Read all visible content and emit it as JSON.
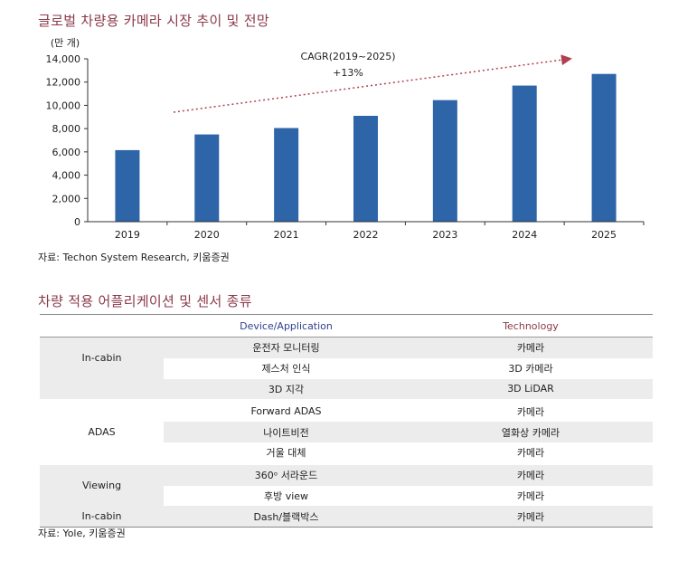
{
  "chart_section": {
    "title": "글로벌 차량용 카메라 시장 추이 및 전망",
    "source": "자료: Techon System Research, 키움증권"
  },
  "chart_data": {
    "type": "bar",
    "unit_label": "(만 개)",
    "categories": [
      "2019",
      "2020",
      "2021",
      "2022",
      "2023",
      "2024",
      "2025"
    ],
    "values": [
      6150,
      7500,
      8050,
      9100,
      10450,
      11700,
      12700
    ],
    "ylim": [
      0,
      14000
    ],
    "yticks": [
      "0",
      "2,000",
      "4,000",
      "6,000",
      "8,000",
      "10,000",
      "12,000",
      "14,000"
    ],
    "annotation": [
      "CAGR(2019~2025)",
      "+13%"
    ],
    "bar_color": "#2e64a8",
    "grid": false
  },
  "table_section": {
    "title": "차량 적용 어플리케이션 및 센서 종류",
    "source": "자료: Yole, 키움증권",
    "headers": {
      "device": "Device/Application",
      "technology": "Technology"
    },
    "rows": [
      {
        "category": "In-cabin",
        "device": "운전자 모니터링",
        "technology": "카메라"
      },
      {
        "category": "",
        "device": "제스처 인식",
        "technology": "3D 카메라"
      },
      {
        "category": "",
        "device": "3D 지각",
        "technology": "3D LiDAR"
      },
      {
        "category": "ADAS",
        "device": "Forward ADAS",
        "technology": "카메라"
      },
      {
        "category": "",
        "device": "나이트비전",
        "technology": "열화상 카메라"
      },
      {
        "category": "",
        "device": "거울 대체",
        "technology": "카메라"
      },
      {
        "category": "Viewing",
        "device": "360ᵒ 서라운드",
        "technology": "카메라"
      },
      {
        "category": "",
        "device": "후방 view",
        "technology": "카메라"
      },
      {
        "category": "In-cabin",
        "device": "Dash/블랙박스",
        "technology": "카메라"
      }
    ]
  }
}
